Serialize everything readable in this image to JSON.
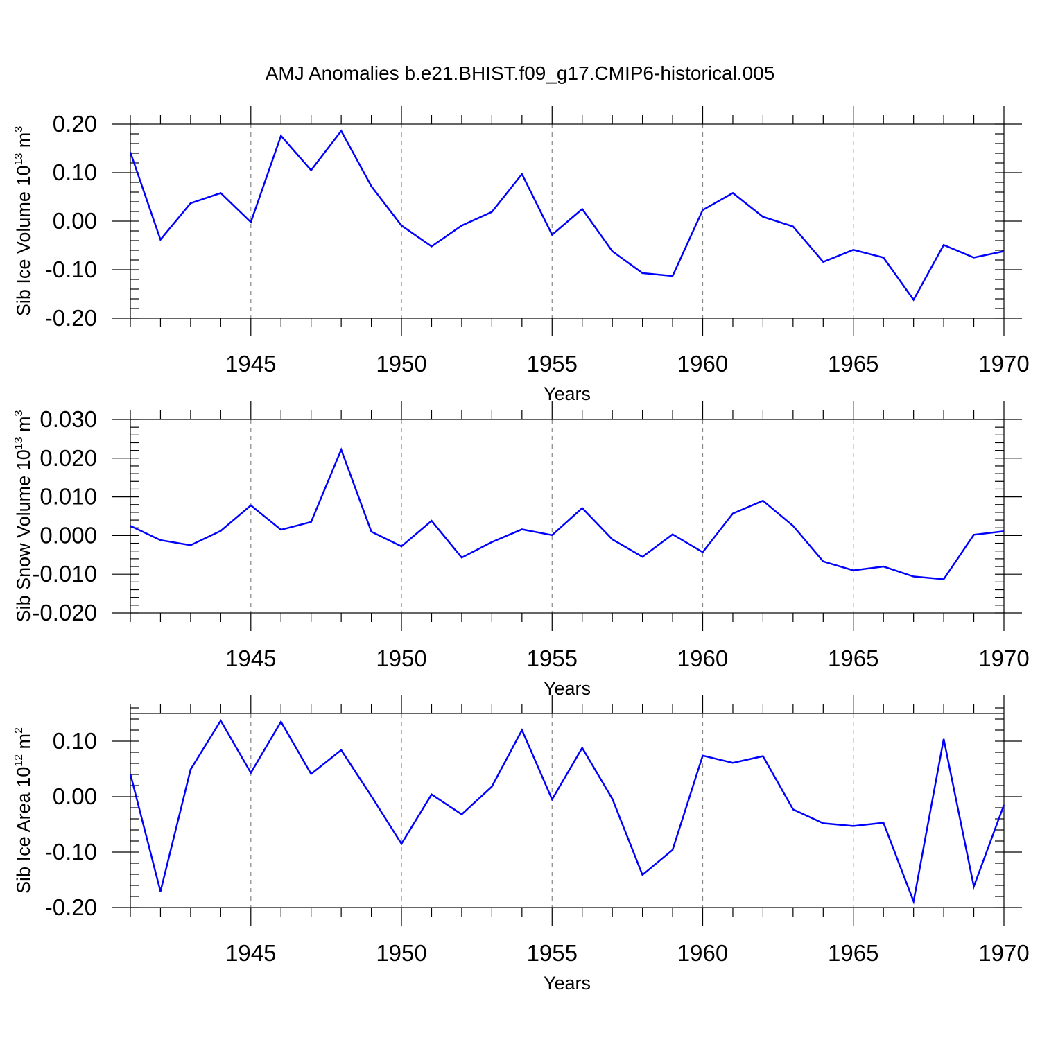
{
  "figure_title": "AMJ Anomalies b.e21.BHIST.f09_g17.CMIP6-historical.005",
  "line_color": "#0000ff",
  "chart_data": [
    {
      "type": "line",
      "ylabel_main": "Sib Ice Volume 10",
      "ylabel_exp": "13",
      "ylabel_unit": " m",
      "ylabel_unit_exp": "3",
      "xlabel": "Years",
      "xlim": [
        1941,
        1970
      ],
      "ylim": [
        -0.2,
        0.2
      ],
      "xticks": [
        1945,
        1950,
        1955,
        1960,
        1965,
        1970
      ],
      "xtick_labels": [
        "1945",
        "1950",
        "1955",
        "1960",
        "1965",
        "1970"
      ],
      "yticks": [
        -0.2,
        -0.1,
        0.0,
        0.1,
        0.2
      ],
      "ytick_labels": [
        "-0.20",
        "-0.10",
        "0.00",
        "0.10",
        "0.20"
      ],
      "y_minor_step": 0.02,
      "x": [
        1941,
        1942,
        1943,
        1944,
        1945,
        1946,
        1947,
        1948,
        1949,
        1950,
        1951,
        1952,
        1953,
        1954,
        1955,
        1956,
        1957,
        1958,
        1959,
        1960,
        1961,
        1962,
        1963,
        1964,
        1965,
        1966,
        1967,
        1968,
        1969,
        1970
      ],
      "series": [
        {
          "name": "Sib Ice Volume",
          "values": [
            0.142,
            -0.038,
            0.037,
            0.058,
            -0.002,
            0.176,
            0.105,
            0.186,
            0.072,
            -0.009,
            -0.052,
            -0.009,
            0.019,
            0.097,
            -0.028,
            0.025,
            -0.062,
            -0.107,
            -0.113,
            0.023,
            0.058,
            0.009,
            -0.011,
            -0.084,
            -0.059,
            -0.075,
            -0.162,
            -0.049,
            -0.075,
            -0.062
          ]
        }
      ]
    },
    {
      "type": "line",
      "ylabel_main": "Sib Snow Volume 10",
      "ylabel_exp": "13",
      "ylabel_unit": " m",
      "ylabel_unit_exp": "3",
      "xlabel": "Years",
      "xlim": [
        1941,
        1970
      ],
      "ylim": [
        -0.02,
        0.03
      ],
      "xticks": [
        1945,
        1950,
        1955,
        1960,
        1965,
        1970
      ],
      "xtick_labels": [
        "1945",
        "1950",
        "1955",
        "1960",
        "1965",
        "1970"
      ],
      "yticks": [
        -0.02,
        -0.01,
        0.0,
        0.01,
        0.02,
        0.03
      ],
      "ytick_labels": [
        "-0.020",
        "-0.010",
        "0.000",
        "0.010",
        "0.020",
        "0.030"
      ],
      "y_minor_step": 0.002,
      "x": [
        1941,
        1942,
        1943,
        1944,
        1945,
        1946,
        1947,
        1948,
        1949,
        1950,
        1951,
        1952,
        1953,
        1954,
        1955,
        1956,
        1957,
        1958,
        1959,
        1960,
        1961,
        1962,
        1963,
        1964,
        1965,
        1966,
        1967,
        1968,
        1969,
        1970
      ],
      "series": [
        {
          "name": "Sib Snow Volume",
          "values": [
            0.0025,
            -0.0012,
            -0.0025,
            0.0012,
            0.0078,
            0.0015,
            0.0035,
            0.0222,
            0.001,
            -0.0028,
            0.0038,
            -0.0057,
            -0.0017,
            0.0016,
            0.0001,
            0.0071,
            -0.001,
            -0.0055,
            0.0003,
            -0.0043,
            0.0057,
            0.009,
            0.0025,
            -0.0067,
            -0.009,
            -0.008,
            -0.0106,
            -0.0113,
            0.0002,
            0.0011
          ]
        }
      ]
    },
    {
      "type": "line",
      "ylabel_main": "Sib Ice Area 10",
      "ylabel_exp": "12",
      "ylabel_unit": " m",
      "ylabel_unit_exp": "2",
      "xlabel": "Years",
      "xlim": [
        1941,
        1970
      ],
      "ylim": [
        -0.2,
        0.15
      ],
      "xticks": [
        1945,
        1950,
        1955,
        1960,
        1965,
        1970
      ],
      "xtick_labels": [
        "1945",
        "1950",
        "1955",
        "1960",
        "1965",
        "1970"
      ],
      "yticks": [
        -0.2,
        -0.1,
        0.0,
        0.1
      ],
      "ytick_labels": [
        "-0.20",
        "-0.10",
        "0.00",
        "0.10"
      ],
      "y_minor_step": 0.02,
      "x": [
        1941,
        1942,
        1943,
        1944,
        1945,
        1946,
        1947,
        1948,
        1949,
        1950,
        1951,
        1952,
        1953,
        1954,
        1955,
        1956,
        1957,
        1958,
        1959,
        1960,
        1961,
        1962,
        1963,
        1964,
        1965,
        1966,
        1967,
        1968,
        1969,
        1970
      ],
      "series": [
        {
          "name": "Sib Ice Area",
          "values": [
            0.041,
            -0.171,
            0.049,
            0.137,
            0.043,
            0.135,
            0.041,
            0.084,
            0.001,
            -0.085,
            0.004,
            -0.032,
            0.018,
            0.12,
            -0.005,
            0.088,
            -0.004,
            -0.141,
            -0.096,
            0.074,
            0.061,
            0.073,
            -0.023,
            -0.048,
            -0.053,
            -0.047,
            -0.189,
            0.104,
            -0.162,
            -0.015
          ]
        }
      ]
    }
  ]
}
